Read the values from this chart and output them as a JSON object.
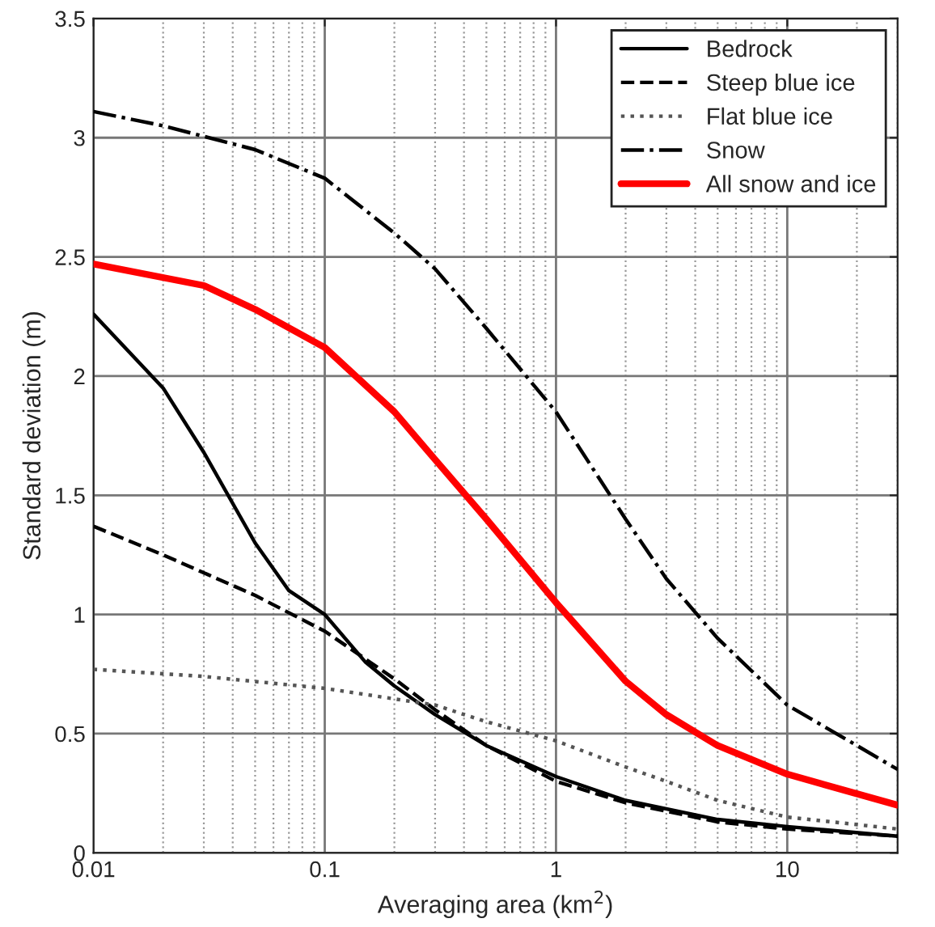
{
  "chart_data": {
    "type": "line",
    "xlabel": "Averaging area (km$^{2}$)",
    "ylabel": "Standard deviation (m)",
    "log": "x",
    "xlim": [
      0.01,
      30
    ],
    "xticks": [
      0.01,
      0.1,
      1,
      10
    ],
    "ylim": [
      0,
      3.5
    ],
    "yticks": [
      0,
      0.5,
      1,
      1.5,
      2,
      2.5,
      3,
      3.5
    ],
    "grid": true,
    "legend": "top right",
    "marker": "none",
    "series": [
      {
        "name": "Bedrock",
        "color": "#000000",
        "line_style": "solid",
        "x": [
          0.01,
          0.02,
          0.03,
          0.05,
          0.07,
          0.1,
          0.15,
          0.2,
          0.3,
          0.5,
          1,
          2,
          5,
          10,
          30
        ],
        "values": [
          2.26,
          1.95,
          1.68,
          1.3,
          1.1,
          1.0,
          0.8,
          0.7,
          0.58,
          0.45,
          0.32,
          0.22,
          0.14,
          0.11,
          0.07
        ]
      },
      {
        "name": "Steep blue ice",
        "color": "#000000",
        "line_style": "dashed",
        "x": [
          0.01,
          0.02,
          0.05,
          0.1,
          0.2,
          0.3,
          0.5,
          1,
          2,
          5,
          10,
          30
        ],
        "values": [
          1.37,
          1.25,
          1.08,
          0.93,
          0.73,
          0.6,
          0.45,
          0.3,
          0.21,
          0.13,
          0.1,
          0.07
        ]
      },
      {
        "name": "Flat blue ice",
        "color": "#555555",
        "line_style": "dotted",
        "x": [
          0.01,
          0.03,
          0.1,
          0.3,
          0.5,
          1,
          2,
          3,
          5,
          10,
          30
        ],
        "values": [
          0.77,
          0.74,
          0.69,
          0.62,
          0.55,
          0.47,
          0.36,
          0.3,
          0.22,
          0.15,
          0.1
        ]
      },
      {
        "name": "Snow",
        "color": "#000000",
        "line_style": "dashdot",
        "x": [
          0.01,
          0.02,
          0.05,
          0.1,
          0.2,
          0.3,
          0.5,
          1,
          2,
          3,
          5,
          10,
          20,
          30
        ],
        "values": [
          3.11,
          3.05,
          2.95,
          2.83,
          2.6,
          2.45,
          2.2,
          1.85,
          1.4,
          1.15,
          0.9,
          0.62,
          0.45,
          0.35
        ]
      },
      {
        "name": "All snow and ice",
        "color": "#ff0000",
        "line_style": "solid",
        "x": [
          0.01,
          0.03,
          0.05,
          0.1,
          0.2,
          0.3,
          0.5,
          1,
          2,
          3,
          5,
          10,
          30
        ],
        "values": [
          2.47,
          2.38,
          2.28,
          2.12,
          1.85,
          1.65,
          1.4,
          1.05,
          0.72,
          0.58,
          0.45,
          0.33,
          0.2
        ]
      }
    ]
  }
}
